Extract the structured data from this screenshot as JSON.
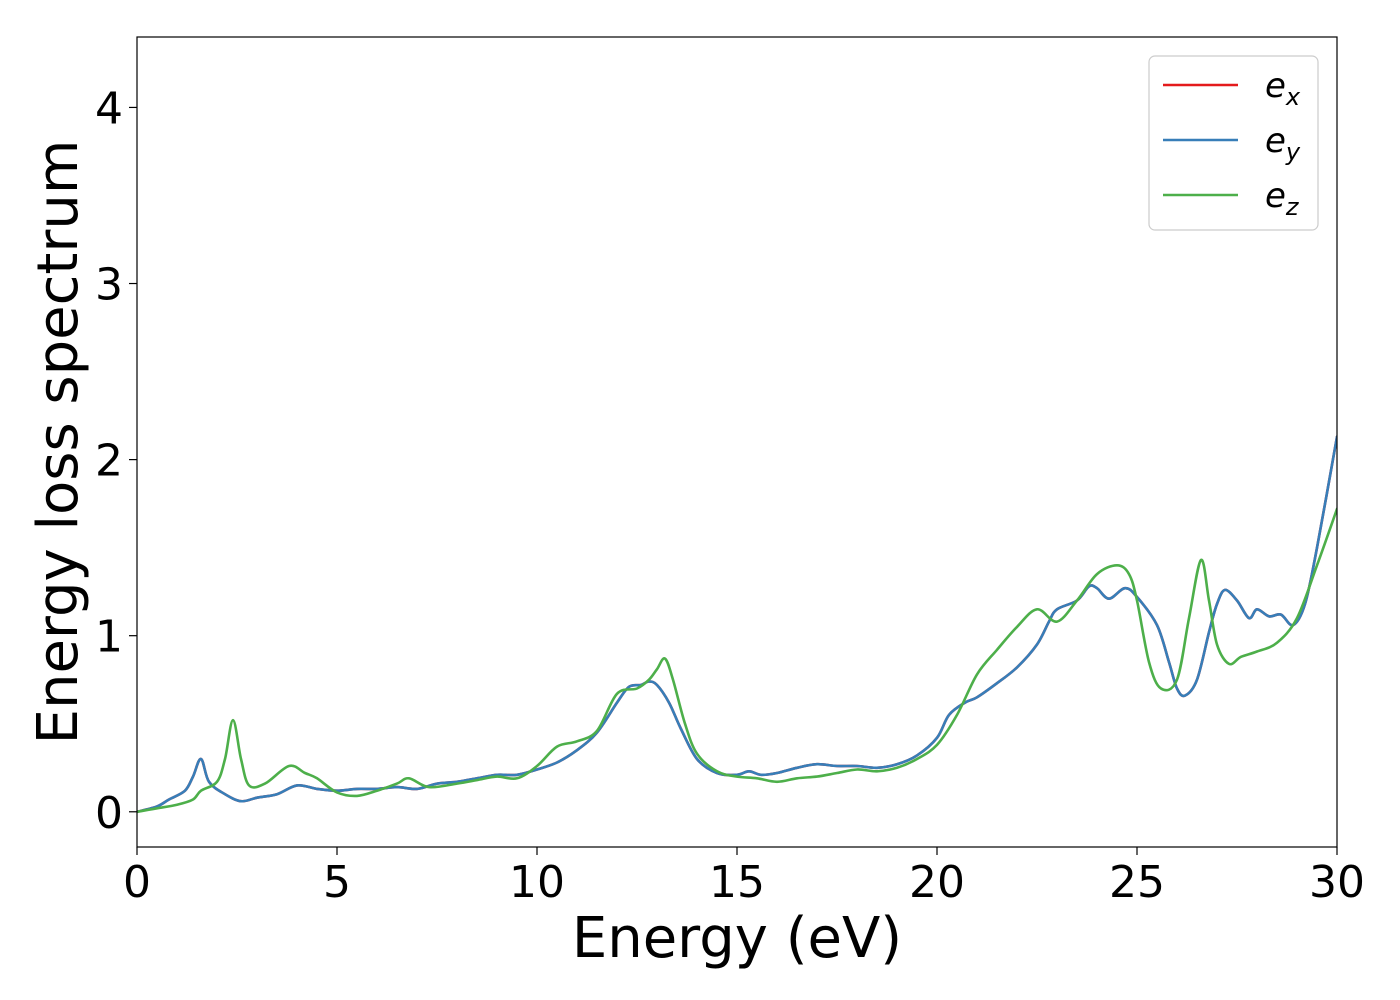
{
  "chart_data": {
    "type": "line",
    "xlabel": "Energy (eV)",
    "ylabel": "Energy loss spectrum",
    "xlim": [
      0,
      30
    ],
    "ylim": [
      -0.2,
      4.4
    ],
    "xticks": [
      0,
      5,
      10,
      15,
      20,
      25,
      30
    ],
    "yticks": [
      0,
      1,
      2,
      3,
      4
    ],
    "grid": false,
    "legend_position": "top-right",
    "series": [
      {
        "name": "e",
        "sub": "x",
        "color": "#e41a1c",
        "x": [
          0,
          0.5,
          0.8,
          1.2,
          1.4,
          1.6,
          1.8,
          2.2,
          2.6,
          3.0,
          3.5,
          4.0,
          4.5,
          5.0,
          5.5,
          6.0,
          6.5,
          7.0,
          7.5,
          8.0,
          8.5,
          9.0,
          9.5,
          10.0,
          10.5,
          11.0,
          11.5,
          12.0,
          12.3,
          12.6,
          12.8,
          13.0,
          13.3,
          13.6,
          14.0,
          14.5,
          15.0,
          15.3,
          15.6,
          16.0,
          16.5,
          17.0,
          17.5,
          18.0,
          18.5,
          19.0,
          19.5,
          20.0,
          20.3,
          20.7,
          21.0,
          21.5,
          22.0,
          22.5,
          22.8,
          23.0,
          23.5,
          23.8,
          24.0,
          24.3,
          24.7,
          25.0,
          25.5,
          25.8,
          26.0,
          26.2,
          26.5,
          26.8,
          27.0,
          27.2,
          27.5,
          27.8,
          28.0,
          28.3,
          28.6,
          28.9,
          29.2,
          29.5,
          30.0
        ],
        "y": [
          0.0,
          0.03,
          0.07,
          0.12,
          0.2,
          0.3,
          0.17,
          0.1,
          0.06,
          0.08,
          0.1,
          0.15,
          0.13,
          0.12,
          0.13,
          0.13,
          0.14,
          0.13,
          0.16,
          0.17,
          0.19,
          0.21,
          0.21,
          0.24,
          0.28,
          0.35,
          0.45,
          0.62,
          0.71,
          0.72,
          0.74,
          0.72,
          0.62,
          0.47,
          0.3,
          0.22,
          0.21,
          0.23,
          0.21,
          0.22,
          0.25,
          0.27,
          0.26,
          0.26,
          0.25,
          0.27,
          0.32,
          0.42,
          0.55,
          0.62,
          0.65,
          0.73,
          0.82,
          0.95,
          1.08,
          1.15,
          1.2,
          1.28,
          1.27,
          1.21,
          1.27,
          1.22,
          1.06,
          0.85,
          0.7,
          0.66,
          0.75,
          1.02,
          1.18,
          1.26,
          1.2,
          1.1,
          1.15,
          1.11,
          1.12,
          1.06,
          1.18,
          1.5,
          2.13
        ]
      },
      {
        "name": "e",
        "sub": "y",
        "color": "#377eb8",
        "x": [
          0,
          0.5,
          0.8,
          1.2,
          1.4,
          1.6,
          1.8,
          2.2,
          2.6,
          3.0,
          3.5,
          4.0,
          4.5,
          5.0,
          5.5,
          6.0,
          6.5,
          7.0,
          7.5,
          8.0,
          8.5,
          9.0,
          9.5,
          10.0,
          10.5,
          11.0,
          11.5,
          12.0,
          12.3,
          12.6,
          12.8,
          13.0,
          13.3,
          13.6,
          14.0,
          14.5,
          15.0,
          15.3,
          15.6,
          16.0,
          16.5,
          17.0,
          17.5,
          18.0,
          18.5,
          19.0,
          19.5,
          20.0,
          20.3,
          20.7,
          21.0,
          21.5,
          22.0,
          22.5,
          22.8,
          23.0,
          23.5,
          23.8,
          24.0,
          24.3,
          24.7,
          25.0,
          25.5,
          25.8,
          26.0,
          26.2,
          26.5,
          26.8,
          27.0,
          27.2,
          27.5,
          27.8,
          28.0,
          28.3,
          28.6,
          28.9,
          29.2,
          29.5,
          30.0
        ],
        "y": [
          0.0,
          0.03,
          0.07,
          0.12,
          0.2,
          0.3,
          0.17,
          0.1,
          0.06,
          0.08,
          0.1,
          0.15,
          0.13,
          0.12,
          0.13,
          0.13,
          0.14,
          0.13,
          0.16,
          0.17,
          0.19,
          0.21,
          0.21,
          0.24,
          0.28,
          0.35,
          0.45,
          0.62,
          0.71,
          0.72,
          0.74,
          0.72,
          0.62,
          0.47,
          0.3,
          0.22,
          0.21,
          0.23,
          0.21,
          0.22,
          0.25,
          0.27,
          0.26,
          0.26,
          0.25,
          0.27,
          0.32,
          0.42,
          0.55,
          0.62,
          0.65,
          0.73,
          0.82,
          0.95,
          1.08,
          1.15,
          1.2,
          1.28,
          1.27,
          1.21,
          1.27,
          1.22,
          1.06,
          0.85,
          0.7,
          0.66,
          0.75,
          1.02,
          1.18,
          1.26,
          1.2,
          1.1,
          1.15,
          1.11,
          1.12,
          1.06,
          1.18,
          1.5,
          2.13
        ]
      },
      {
        "name": "e",
        "sub": "z",
        "color": "#4daf4a",
        "x": [
          0,
          0.5,
          1.0,
          1.4,
          1.6,
          2.0,
          2.2,
          2.4,
          2.6,
          2.8,
          3.2,
          3.8,
          4.2,
          4.5,
          5.0,
          5.5,
          6.0,
          6.5,
          6.8,
          7.3,
          8.0,
          8.5,
          9.0,
          9.5,
          10.0,
          10.5,
          11.0,
          11.5,
          12.0,
          12.5,
          12.8,
          13.0,
          13.2,
          13.4,
          13.7,
          14.0,
          14.5,
          15.0,
          15.5,
          16.0,
          16.5,
          17.0,
          17.5,
          18.0,
          18.5,
          19.0,
          19.5,
          20.0,
          20.5,
          21.0,
          21.5,
          22.0,
          22.5,
          23.0,
          23.5,
          24.0,
          24.5,
          24.8,
          25.0,
          25.3,
          25.6,
          26.0,
          26.3,
          26.6,
          26.8,
          27.0,
          27.3,
          27.6,
          28.0,
          28.5,
          29.0,
          29.5,
          30.0
        ],
        "y": [
          0.0,
          0.02,
          0.04,
          0.07,
          0.12,
          0.17,
          0.3,
          0.52,
          0.3,
          0.15,
          0.16,
          0.26,
          0.22,
          0.19,
          0.11,
          0.09,
          0.12,
          0.16,
          0.19,
          0.14,
          0.16,
          0.18,
          0.2,
          0.19,
          0.26,
          0.37,
          0.4,
          0.46,
          0.67,
          0.7,
          0.75,
          0.81,
          0.87,
          0.75,
          0.5,
          0.33,
          0.23,
          0.2,
          0.19,
          0.17,
          0.19,
          0.2,
          0.22,
          0.24,
          0.23,
          0.25,
          0.3,
          0.38,
          0.55,
          0.78,
          0.92,
          1.05,
          1.15,
          1.08,
          1.2,
          1.35,
          1.4,
          1.35,
          1.2,
          0.85,
          0.7,
          0.75,
          1.1,
          1.43,
          1.2,
          0.95,
          0.84,
          0.88,
          0.91,
          0.96,
          1.1,
          1.4,
          1.72
        ]
      }
    ]
  }
}
